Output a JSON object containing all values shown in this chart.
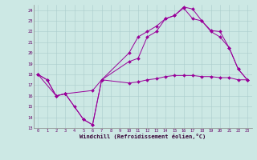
{
  "xlabel": "Windchill (Refroidissement éolien,°C)",
  "bg_color": "#cce8e4",
  "line_color": "#990099",
  "xlim": [
    -0.5,
    23.5
  ],
  "ylim": [
    13,
    24.5
  ],
  "yticks": [
    13,
    14,
    15,
    16,
    17,
    18,
    19,
    20,
    21,
    22,
    23,
    24
  ],
  "xticks": [
    0,
    1,
    2,
    3,
    4,
    5,
    6,
    7,
    8,
    9,
    10,
    11,
    12,
    13,
    14,
    15,
    16,
    17,
    18,
    19,
    20,
    21,
    22,
    23
  ],
  "line1_x": [
    0,
    1,
    2,
    3,
    4,
    5,
    6,
    7,
    10,
    11,
    12,
    13,
    14,
    15,
    16,
    17,
    18,
    19,
    20,
    21,
    22,
    23
  ],
  "line1_y": [
    18.0,
    17.5,
    16.0,
    16.2,
    15.0,
    13.8,
    13.3,
    17.5,
    20.0,
    21.5,
    22.0,
    22.5,
    23.2,
    23.5,
    24.3,
    24.1,
    23.0,
    22.0,
    21.5,
    20.5,
    18.5,
    17.5
  ],
  "line2_x": [
    0,
    2,
    3,
    5,
    6,
    7,
    10,
    11,
    12,
    13,
    14,
    15,
    16,
    17,
    18,
    19,
    20,
    21,
    22,
    23
  ],
  "line2_y": [
    18.0,
    16.0,
    16.2,
    13.8,
    13.3,
    17.5,
    19.2,
    19.5,
    21.5,
    22.0,
    23.2,
    23.5,
    24.2,
    23.2,
    23.0,
    22.1,
    22.0,
    20.5,
    18.5,
    17.5
  ],
  "line3_x": [
    0,
    1,
    2,
    3,
    6,
    7,
    10,
    11,
    12,
    13,
    14,
    15,
    16,
    17,
    18,
    19,
    20,
    21,
    22,
    23
  ],
  "line3_y": [
    18.0,
    17.5,
    16.0,
    16.2,
    16.5,
    17.5,
    17.2,
    17.3,
    17.5,
    17.6,
    17.8,
    17.9,
    17.9,
    17.9,
    17.8,
    17.8,
    17.7,
    17.7,
    17.5,
    17.5
  ]
}
